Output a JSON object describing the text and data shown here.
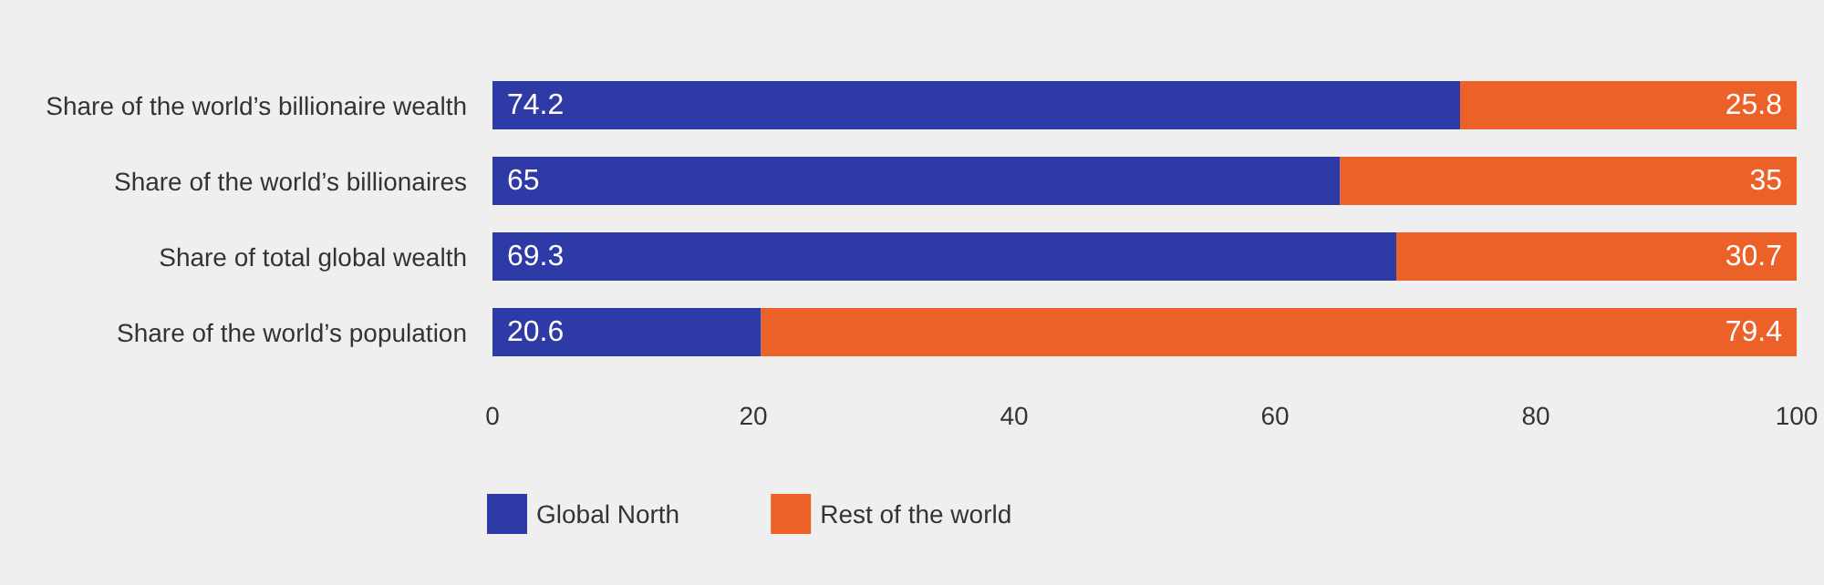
{
  "chart_data": {
    "type": "bar",
    "orientation": "horizontal",
    "stacked": true,
    "categories": [
      "Share of the world’s billionaire wealth",
      "Share of the world’s billionaires",
      "Share of total global wealth",
      "Share of the world’s population"
    ],
    "series": [
      {
        "name": "Global North",
        "color": "#2e3aa6",
        "values": [
          74.2,
          65,
          69.3,
          20.6
        ]
      },
      {
        "name": "Rest of the world",
        "color": "#ec6127",
        "values": [
          25.8,
          35,
          30.7,
          79.4
        ]
      }
    ],
    "xlim": [
      0,
      100
    ],
    "xticks": [
      0,
      20,
      40,
      60,
      80,
      100
    ],
    "grid": false,
    "legend": "bottom left",
    "data_labels": true
  }
}
